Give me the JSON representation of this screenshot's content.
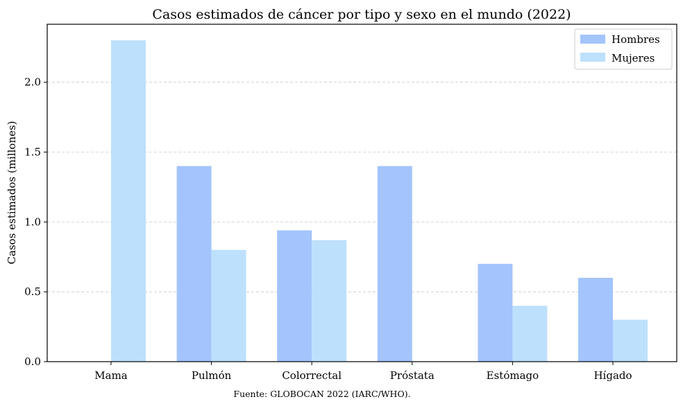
{
  "chart_data": {
    "type": "bar",
    "title": "Casos estimados de cáncer por tipo y sexo en el mundo (2022)",
    "xlabel": "",
    "ylabel": "Casos estimados (millones)",
    "categories": [
      "Mama",
      "Pulmón",
      "Colorrectal",
      "Próstata",
      "Estómago",
      "Hígado"
    ],
    "series": [
      {
        "name": "Hombres",
        "color": "#a3c4fd",
        "values": [
          0,
          1.4,
          0.94,
          1.4,
          0.7,
          0.6
        ]
      },
      {
        "name": "Mujeres",
        "color": "#bde0fd",
        "values": [
          2.3,
          0.8,
          0.87,
          0,
          0.4,
          0.3
        ]
      }
    ],
    "ylim": [
      0,
      2.415
    ],
    "yticks": [
      0.0,
      0.5,
      1.0,
      1.5,
      2.0
    ],
    "ytick_labels": [
      "0.0",
      "0.5",
      "1.0",
      "1.5",
      "2.0"
    ],
    "grid": "y-dashed",
    "legend_position": "top-right",
    "footer": "Fuente: GLOBOCAN 2022 (IARC/WHO)."
  }
}
